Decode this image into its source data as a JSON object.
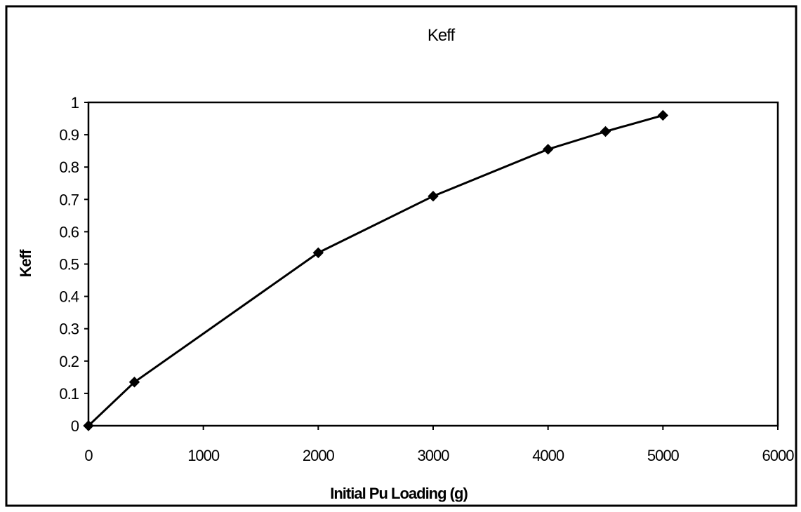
{
  "chart_data": {
    "type": "line",
    "title": "Keff",
    "xlabel": "Initial Pu Loading (g)",
    "ylabel": "Keff",
    "xlim": [
      0,
      6000
    ],
    "ylim": [
      0,
      1
    ],
    "x_ticks": [
      "0",
      "1000",
      "2000",
      "3000",
      "4000",
      "5000",
      "6000"
    ],
    "y_ticks": [
      "0",
      "0.1",
      "0.2",
      "0.3",
      "0.4",
      "0.5",
      "0.6",
      "0.7",
      "0.8",
      "0.9",
      "1"
    ],
    "grid": false,
    "legend": "none",
    "marker": "diamond",
    "line_color": "#000000",
    "series": [
      {
        "x": [
          0,
          400,
          2000,
          3000,
          4000,
          4500,
          5000
        ],
        "y": [
          0.0,
          0.135,
          0.535,
          0.71,
          0.855,
          0.91,
          0.96
        ]
      }
    ]
  }
}
